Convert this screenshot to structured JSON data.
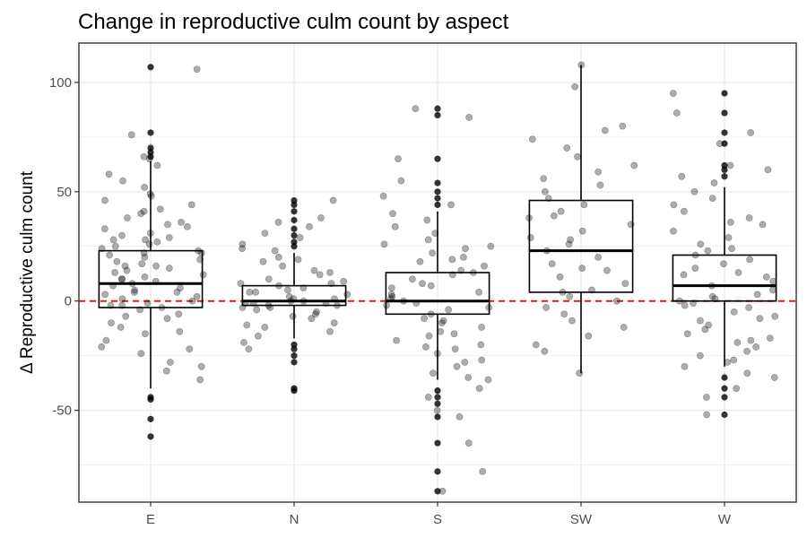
{
  "chart_data": {
    "type": "boxplot",
    "title": "Change in reproductive culm count by aspect",
    "xlabel": "",
    "ylabel": "Δ Reproductive culm count",
    "categories": [
      "E",
      "N",
      "S",
      "SW",
      "W"
    ],
    "ylim": [
      -92,
      118
    ],
    "y_ticks": [
      -50,
      0,
      50,
      100
    ],
    "y_tick_labels": [
      "-50",
      "0",
      "50",
      "100"
    ],
    "grid": true,
    "reference_line": {
      "y": 0,
      "color": "#e31a1c",
      "style": "dashed"
    },
    "boxes": [
      {
        "category": "E",
        "lower_whisker": -40,
        "q1": -3,
        "median": 8,
        "q3": 23,
        "upper_whisker": 64,
        "outliers": [
          107,
          77,
          70,
          68,
          66,
          -44,
          -45,
          -54,
          -62
        ]
      },
      {
        "category": "N",
        "lower_whisker": -17,
        "q1": -2,
        "median": 0,
        "q3": 7,
        "upper_whisker": 22,
        "outliers": [
          46,
          44,
          41,
          37,
          33,
          30,
          27,
          25,
          -20,
          -22,
          -25,
          -28,
          -40,
          -41
        ]
      },
      {
        "category": "S",
        "lower_whisker": -36,
        "q1": -6,
        "median": 0,
        "q3": 13,
        "upper_whisker": 41,
        "outliers": [
          88,
          85,
          65,
          54,
          50,
          47,
          44,
          -41,
          -44,
          -47,
          -53,
          -65,
          -78,
          -87
        ]
      },
      {
        "category": "SW",
        "lower_whisker": -33,
        "q1": 4,
        "median": 23,
        "q3": 46,
        "upper_whisker": 108,
        "outliers": []
      },
      {
        "category": "W",
        "lower_whisker": -30,
        "q1": 0,
        "median": 7,
        "q3": 21,
        "upper_whisker": 52,
        "outliers": [
          95,
          86,
          77,
          72,
          62,
          60,
          57,
          -35,
          -40,
          -44,
          -52
        ]
      }
    ],
    "jitter_points": {
      "E": [
        65,
        62,
        58,
        55,
        52,
        48,
        46,
        44,
        42,
        40,
        38,
        36,
        35,
        33,
        31,
        30,
        29,
        28,
        27,
        26,
        25,
        24,
        23,
        22,
        21,
        20,
        19,
        18,
        17,
        16,
        15,
        14,
        13,
        12,
        11,
        10,
        9,
        8,
        7,
        6,
        5,
        4,
        3,
        2,
        1,
        0,
        -1,
        -2,
        -3,
        -4,
        -6,
        -8,
        -10,
        -12,
        -15,
        -18,
        -21,
        -24,
        -28,
        -32,
        -36,
        76,
        66,
        49,
        41,
        34,
        28,
        22,
        16,
        10,
        4,
        -2,
        -7,
        -14,
        -22,
        -30,
        106
      ],
      "N": [
        46,
        38,
        34,
        29,
        26,
        23,
        20,
        18,
        16,
        14,
        12,
        10,
        9,
        8,
        7,
        6,
        5,
        4,
        3,
        2,
        1,
        0,
        0,
        -1,
        -1,
        -2,
        -2,
        -3,
        -4,
        -5,
        -6,
        -8,
        -10,
        -12,
        -14,
        -16,
        -19,
        -22,
        24,
        19,
        13,
        8,
        4,
        1,
        -1,
        -3,
        -7,
        -11,
        36,
        31
      ],
      "S": [
        88,
        84,
        65,
        55,
        48,
        44,
        40,
        37,
        34,
        31,
        28,
        26,
        24,
        22,
        20,
        18,
        16,
        14,
        12,
        10,
        8,
        6,
        4,
        2,
        1,
        0,
        -1,
        -2,
        -4,
        -6,
        -8,
        -10,
        -12,
        -14,
        -16,
        -18,
        -20,
        -22,
        -24,
        -27,
        -30,
        -33,
        -36,
        -40,
        -44,
        -50,
        -53,
        -65,
        -78,
        -87,
        25,
        19,
        13,
        7,
        3,
        -3,
        -9,
        -15,
        -21,
        -28,
        -35
      ],
      "SW": [
        108,
        98,
        80,
        78,
        74,
        70,
        66,
        62,
        59,
        56,
        53,
        50,
        47,
        44,
        41,
        38,
        35,
        32,
        29,
        26,
        23,
        20,
        17,
        14,
        11,
        8,
        5,
        2,
        0,
        -3,
        -6,
        -9,
        -12,
        -16,
        -20,
        -23,
        -33,
        39,
        28,
        15,
        4
      ],
      "W": [
        95,
        86,
        77,
        72,
        62,
        60,
        57,
        54,
        50,
        47,
        44,
        41,
        38,
        35,
        32,
        29,
        26,
        23,
        21,
        19,
        17,
        15,
        13,
        11,
        9,
        7,
        5,
        3,
        1,
        0,
        -1,
        -2,
        -3,
        -5,
        -7,
        -9,
        -11,
        -13,
        -15,
        -17,
        -19,
        -21,
        -23,
        -25,
        -27,
        -30,
        -33,
        -35,
        -40,
        -44,
        -52,
        36,
        24,
        12,
        2,
        -8,
        -18,
        -28
      ]
    },
    "colors": {
      "points": "#000000",
      "box_stroke": "#000000",
      "grid": "#ebebeb",
      "reference_line": "#e31a1c",
      "panel_border": "#333333"
    }
  }
}
